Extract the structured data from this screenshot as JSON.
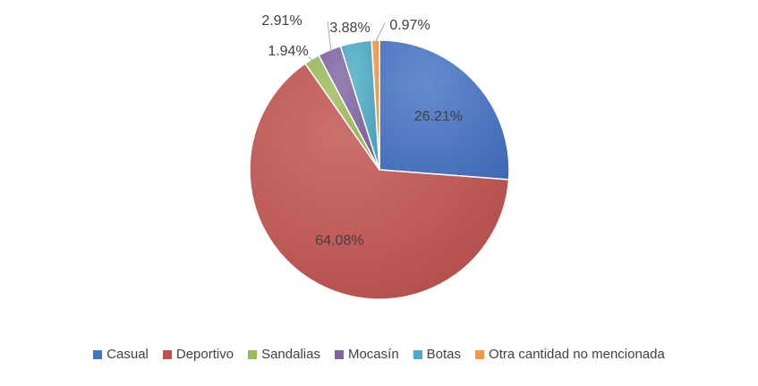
{
  "chart_data": {
    "type": "pie",
    "title": "",
    "legend_position": "bottom",
    "categories": [
      "Casual",
      "Deportivo",
      "Sandalias",
      "Mocasín",
      "Botas",
      "Otra cantidad no mencionada"
    ],
    "values": [
      26.21,
      64.08,
      1.94,
      2.91,
      3.88,
      0.97
    ],
    "data_labels": [
      "26.21%",
      "64.08%",
      "1.94%",
      "2.91%",
      "3.88%",
      "0.97%"
    ],
    "colors": [
      "#4472C4",
      "#C0504D",
      "#9BBB59",
      "#8064A2",
      "#4BACC6",
      "#F79646"
    ]
  }
}
